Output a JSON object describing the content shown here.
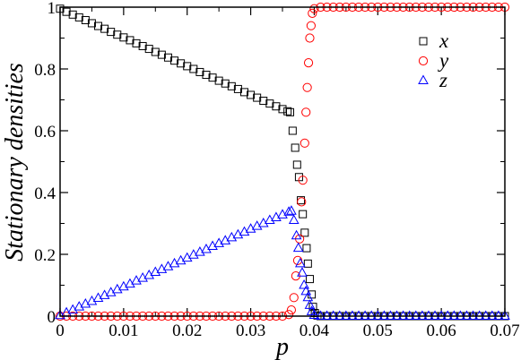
{
  "chart_data": {
    "type": "scatter",
    "xlabel": "p",
    "ylabel": "Stationary densities",
    "xlim": [
      0,
      0.07
    ],
    "ylim": [
      0,
      1
    ],
    "xticks": [
      "0",
      "0.01",
      "0.02",
      "0.03",
      "0.04",
      "0.05",
      "0.06",
      "0.07"
    ],
    "yticks": [
      "0",
      "0.2",
      "0.4",
      "0.6",
      "0.8",
      "1"
    ],
    "legend_position": "top-right",
    "series": [
      {
        "name": "x",
        "marker": "square",
        "color": "#000000",
        "points": [
          [
            0.0,
            0.995
          ],
          [
            0.001,
            0.985
          ],
          [
            0.002,
            0.976
          ],
          [
            0.003,
            0.967
          ],
          [
            0.004,
            0.958
          ],
          [
            0.005,
            0.948
          ],
          [
            0.006,
            0.939
          ],
          [
            0.007,
            0.93
          ],
          [
            0.008,
            0.92
          ],
          [
            0.009,
            0.911
          ],
          [
            0.01,
            0.902
          ],
          [
            0.011,
            0.893
          ],
          [
            0.012,
            0.883
          ],
          [
            0.013,
            0.874
          ],
          [
            0.014,
            0.865
          ],
          [
            0.015,
            0.855
          ],
          [
            0.016,
            0.846
          ],
          [
            0.017,
            0.837
          ],
          [
            0.018,
            0.827
          ],
          [
            0.019,
            0.818
          ],
          [
            0.02,
            0.809
          ],
          [
            0.021,
            0.8
          ],
          [
            0.022,
            0.79
          ],
          [
            0.023,
            0.781
          ],
          [
            0.024,
            0.772
          ],
          [
            0.025,
            0.762
          ],
          [
            0.026,
            0.753
          ],
          [
            0.027,
            0.744
          ],
          [
            0.028,
            0.735
          ],
          [
            0.029,
            0.725
          ],
          [
            0.03,
            0.716
          ],
          [
            0.031,
            0.707
          ],
          [
            0.032,
            0.697
          ],
          [
            0.033,
            0.688
          ],
          [
            0.034,
            0.679
          ],
          [
            0.035,
            0.67
          ],
          [
            0.0358,
            0.663
          ],
          [
            0.0362,
            0.66
          ],
          [
            0.0366,
            0.6
          ],
          [
            0.037,
            0.545
          ],
          [
            0.0373,
            0.49
          ],
          [
            0.0376,
            0.45
          ],
          [
            0.0379,
            0.375
          ],
          [
            0.0382,
            0.33
          ],
          [
            0.0385,
            0.27
          ],
          [
            0.0388,
            0.22
          ],
          [
            0.039,
            0.17
          ],
          [
            0.0393,
            0.12
          ],
          [
            0.0396,
            0.07
          ],
          [
            0.0398,
            0.03
          ],
          [
            0.0401,
            0.01
          ],
          [
            0.0405,
            0.002
          ],
          [
            0.041,
            0.0
          ],
          [
            0.042,
            0.0
          ],
          [
            0.043,
            0.0
          ],
          [
            0.044,
            0.0
          ],
          [
            0.045,
            0.0
          ],
          [
            0.046,
            0.0
          ],
          [
            0.047,
            0.0
          ],
          [
            0.048,
            0.0
          ],
          [
            0.049,
            0.0
          ],
          [
            0.05,
            0.0
          ],
          [
            0.051,
            0.0
          ],
          [
            0.052,
            0.0
          ],
          [
            0.053,
            0.0
          ],
          [
            0.054,
            0.0
          ],
          [
            0.055,
            0.0
          ],
          [
            0.056,
            0.0
          ],
          [
            0.057,
            0.0
          ],
          [
            0.058,
            0.0
          ],
          [
            0.059,
            0.0
          ],
          [
            0.06,
            0.0
          ],
          [
            0.061,
            0.0
          ],
          [
            0.062,
            0.0
          ],
          [
            0.063,
            0.0
          ],
          [
            0.064,
            0.0
          ],
          [
            0.065,
            0.0
          ],
          [
            0.066,
            0.0
          ],
          [
            0.067,
            0.0
          ],
          [
            0.068,
            0.0
          ],
          [
            0.069,
            0.0
          ],
          [
            0.07,
            0.0
          ]
        ]
      },
      {
        "name": "y",
        "marker": "circle",
        "color": "#ff0000",
        "points": [
          [
            0.0,
            0.0
          ],
          [
            0.001,
            0.0
          ],
          [
            0.002,
            0.0
          ],
          [
            0.003,
            0.0
          ],
          [
            0.004,
            0.0
          ],
          [
            0.005,
            0.0
          ],
          [
            0.006,
            0.0
          ],
          [
            0.007,
            0.0
          ],
          [
            0.008,
            0.0
          ],
          [
            0.009,
            0.0
          ],
          [
            0.01,
            0.0
          ],
          [
            0.011,
            0.0
          ],
          [
            0.012,
            0.0
          ],
          [
            0.013,
            0.0
          ],
          [
            0.014,
            0.0
          ],
          [
            0.015,
            0.0
          ],
          [
            0.016,
            0.0
          ],
          [
            0.017,
            0.0
          ],
          [
            0.018,
            0.0
          ],
          [
            0.019,
            0.0
          ],
          [
            0.02,
            0.0
          ],
          [
            0.021,
            0.0
          ],
          [
            0.022,
            0.0
          ],
          [
            0.023,
            0.0
          ],
          [
            0.024,
            0.0
          ],
          [
            0.025,
            0.0
          ],
          [
            0.026,
            0.0
          ],
          [
            0.027,
            0.0
          ],
          [
            0.028,
            0.0
          ],
          [
            0.029,
            0.0
          ],
          [
            0.03,
            0.0
          ],
          [
            0.031,
            0.0
          ],
          [
            0.032,
            0.0
          ],
          [
            0.033,
            0.0
          ],
          [
            0.034,
            0.0
          ],
          [
            0.035,
            0.0
          ],
          [
            0.036,
            0.005
          ],
          [
            0.0364,
            0.02
          ],
          [
            0.0368,
            0.06
          ],
          [
            0.0371,
            0.13
          ],
          [
            0.0374,
            0.18
          ],
          [
            0.0377,
            0.25
          ],
          [
            0.038,
            0.37
          ],
          [
            0.0382,
            0.44
          ],
          [
            0.0385,
            0.56
          ],
          [
            0.0387,
            0.66
          ],
          [
            0.0389,
            0.74
          ],
          [
            0.0391,
            0.82
          ],
          [
            0.0393,
            0.9
          ],
          [
            0.0395,
            0.94
          ],
          [
            0.0397,
            0.98
          ],
          [
            0.04,
            0.995
          ],
          [
            0.041,
            1.0
          ],
          [
            0.042,
            1.0
          ],
          [
            0.043,
            1.0
          ],
          [
            0.044,
            1.0
          ],
          [
            0.045,
            1.0
          ],
          [
            0.046,
            1.0
          ],
          [
            0.047,
            1.0
          ],
          [
            0.048,
            1.0
          ],
          [
            0.049,
            1.0
          ],
          [
            0.05,
            1.0
          ],
          [
            0.051,
            1.0
          ],
          [
            0.052,
            1.0
          ],
          [
            0.053,
            1.0
          ],
          [
            0.054,
            1.0
          ],
          [
            0.055,
            1.0
          ],
          [
            0.056,
            1.0
          ],
          [
            0.057,
            1.0
          ],
          [
            0.058,
            1.0
          ],
          [
            0.059,
            1.0
          ],
          [
            0.06,
            1.0
          ],
          [
            0.061,
            1.0
          ],
          [
            0.062,
            1.0
          ],
          [
            0.063,
            1.0
          ],
          [
            0.064,
            1.0
          ],
          [
            0.065,
            1.0
          ],
          [
            0.066,
            1.0
          ],
          [
            0.067,
            1.0
          ],
          [
            0.068,
            1.0
          ],
          [
            0.069,
            1.0
          ],
          [
            0.07,
            1.0
          ]
        ]
      },
      {
        "name": "z",
        "marker": "triangle",
        "color": "#0000ff",
        "points": [
          [
            0.0,
            0.002
          ],
          [
            0.001,
            0.011
          ],
          [
            0.002,
            0.02
          ],
          [
            0.003,
            0.03
          ],
          [
            0.004,
            0.039
          ],
          [
            0.005,
            0.048
          ],
          [
            0.006,
            0.058
          ],
          [
            0.007,
            0.067
          ],
          [
            0.008,
            0.076
          ],
          [
            0.009,
            0.086
          ],
          [
            0.01,
            0.095
          ],
          [
            0.011,
            0.104
          ],
          [
            0.012,
            0.114
          ],
          [
            0.013,
            0.123
          ],
          [
            0.014,
            0.132
          ],
          [
            0.015,
            0.142
          ],
          [
            0.016,
            0.151
          ],
          [
            0.017,
            0.16
          ],
          [
            0.018,
            0.17
          ],
          [
            0.019,
            0.179
          ],
          [
            0.02,
            0.188
          ],
          [
            0.021,
            0.198
          ],
          [
            0.022,
            0.207
          ],
          [
            0.023,
            0.216
          ],
          [
            0.024,
            0.226
          ],
          [
            0.025,
            0.235
          ],
          [
            0.026,
            0.244
          ],
          [
            0.027,
            0.254
          ],
          [
            0.028,
            0.263
          ],
          [
            0.029,
            0.272
          ],
          [
            0.03,
            0.282
          ],
          [
            0.031,
            0.291
          ],
          [
            0.032,
            0.3
          ],
          [
            0.033,
            0.31
          ],
          [
            0.034,
            0.319
          ],
          [
            0.035,
            0.328
          ],
          [
            0.036,
            0.337
          ],
          [
            0.0364,
            0.34
          ],
          [
            0.0368,
            0.31
          ],
          [
            0.0372,
            0.26
          ],
          [
            0.0375,
            0.22
          ],
          [
            0.0378,
            0.17
          ],
          [
            0.0381,
            0.14
          ],
          [
            0.0384,
            0.1
          ],
          [
            0.0387,
            0.08
          ],
          [
            0.039,
            0.06
          ],
          [
            0.0393,
            0.035
          ],
          [
            0.0396,
            0.015
          ],
          [
            0.04,
            0.003
          ],
          [
            0.041,
            0.0
          ],
          [
            0.042,
            0.0
          ],
          [
            0.043,
            0.0
          ],
          [
            0.044,
            0.0
          ],
          [
            0.045,
            0.0
          ],
          [
            0.046,
            0.0
          ],
          [
            0.047,
            0.0
          ],
          [
            0.048,
            0.0
          ],
          [
            0.049,
            0.0
          ],
          [
            0.05,
            0.0
          ],
          [
            0.051,
            0.0
          ],
          [
            0.052,
            0.0
          ],
          [
            0.053,
            0.0
          ],
          [
            0.054,
            0.0
          ],
          [
            0.055,
            0.0
          ],
          [
            0.056,
            0.0
          ],
          [
            0.057,
            0.0
          ],
          [
            0.058,
            0.0
          ],
          [
            0.059,
            0.0
          ],
          [
            0.06,
            0.0
          ],
          [
            0.061,
            0.0
          ],
          [
            0.062,
            0.0
          ],
          [
            0.063,
            0.0
          ],
          [
            0.064,
            0.0
          ],
          [
            0.065,
            0.0
          ],
          [
            0.066,
            0.0
          ],
          [
            0.067,
            0.0
          ],
          [
            0.068,
            0.0
          ],
          [
            0.069,
            0.0
          ],
          [
            0.07,
            0.0
          ]
        ]
      }
    ]
  }
}
